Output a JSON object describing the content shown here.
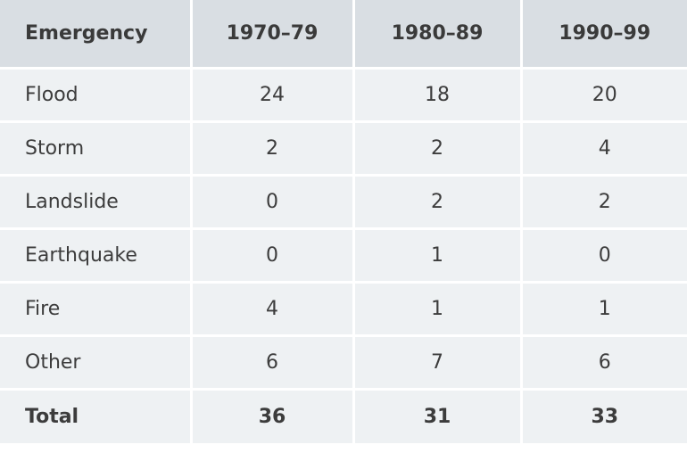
{
  "chart_data": {
    "type": "table",
    "columns": [
      "Emergency",
      "1970–79",
      "1980–89",
      "1990–99"
    ],
    "rows": [
      {
        "label": "Flood",
        "values": [
          24,
          18,
          20
        ]
      },
      {
        "label": "Storm",
        "values": [
          2,
          2,
          4
        ]
      },
      {
        "label": "Landslide",
        "values": [
          0,
          2,
          2
        ]
      },
      {
        "label": "Earthquake",
        "values": [
          0,
          1,
          0
        ]
      },
      {
        "label": "Fire",
        "values": [
          4,
          1,
          1
        ]
      },
      {
        "label": "Other",
        "values": [
          6,
          7,
          6
        ]
      }
    ],
    "total": {
      "label": "Total",
      "values": [
        36,
        31,
        33
      ]
    }
  },
  "colors": {
    "header_bg": "#d9dee3",
    "cell_bg": "#eef1f3",
    "text": "#3c3c3c",
    "grid_line": "#ffffff"
  }
}
